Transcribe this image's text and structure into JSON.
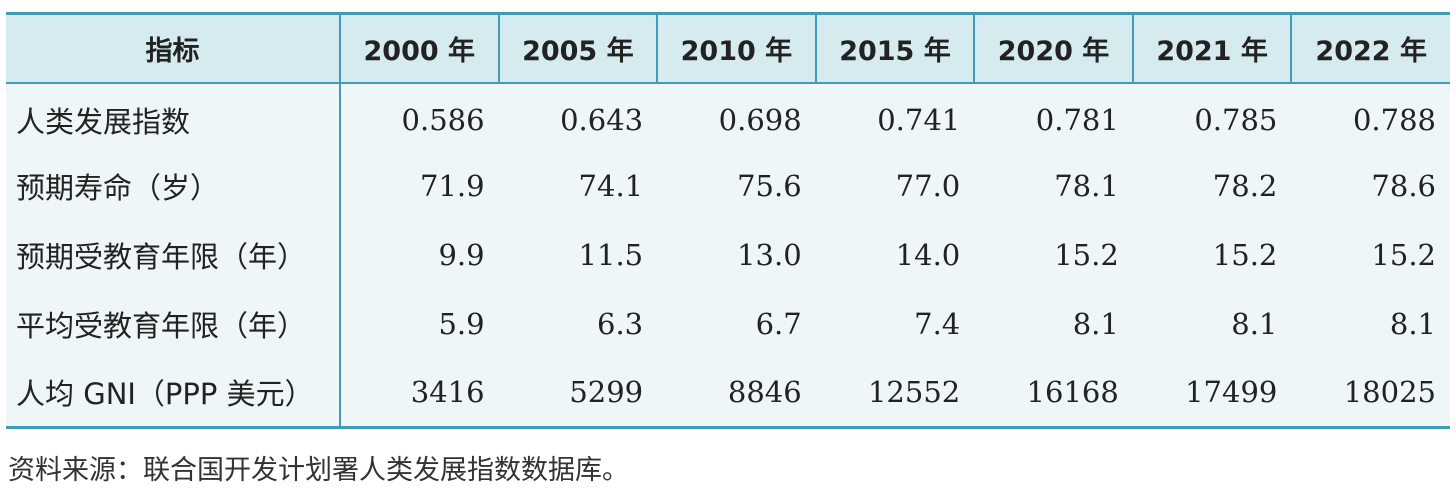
{
  "table": {
    "headers": [
      "指标",
      "2000 年",
      "2005 年",
      "2010 年",
      "2015 年",
      "2020 年",
      "2021 年",
      "2022 年"
    ],
    "rows": [
      {
        "label": "人类发展指数",
        "values": [
          "0.586",
          "0.643",
          "0.698",
          "0.741",
          "0.781",
          "0.785",
          "0.788"
        ]
      },
      {
        "label": "预期寿命（岁）",
        "values": [
          "71.9",
          "74.1",
          "75.6",
          "77.0",
          "78.1",
          "78.2",
          "78.6"
        ]
      },
      {
        "label": "预期受教育年限（年）",
        "values": [
          "9.9",
          "11.5",
          "13.0",
          "14.0",
          "15.2",
          "15.2",
          "15.2"
        ]
      },
      {
        "label": "平均受教育年限（年）",
        "values": [
          "5.9",
          "6.3",
          "6.7",
          "7.4",
          "8.1",
          "8.1",
          "8.1"
        ]
      },
      {
        "label": "人均 GNI（PPP 美元）",
        "values": [
          "3416",
          "5299",
          "8846",
          "12552",
          "16168",
          "17499",
          "18025"
        ]
      }
    ]
  },
  "source_note": "资料来源：联合国开发计划署人类发展指数数据库。",
  "colors": {
    "rule": "#3f9db5",
    "header_bg": "#d6ebef",
    "body_bg": "#eef6f8"
  }
}
